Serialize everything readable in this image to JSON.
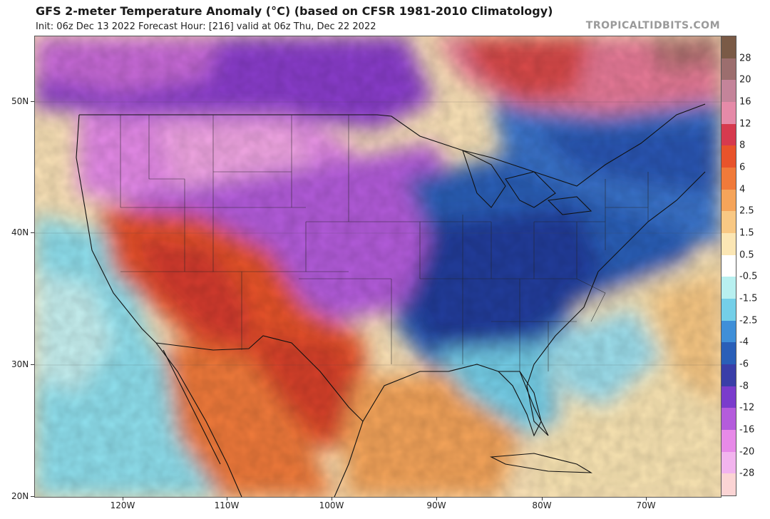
{
  "header": {
    "title": "GFS 2-meter Temperature Anomaly (°C) (based on CFSR 1981-2010 Climatology)",
    "subtitle": "Init: 06z Dec 13 2022   Forecast Hour: [216]   valid at 06z Thu, Dec 22 2022",
    "credit": "TROPICALTIDBITS.COM"
  },
  "map": {
    "lat_labels": [
      "50N",
      "40N",
      "30N",
      "20N"
    ],
    "lon_labels": [
      "120W",
      "110W",
      "100W",
      "90W",
      "80W",
      "70W"
    ]
  },
  "colorbar": {
    "labels": [
      "28",
      "20",
      "16",
      "12",
      "8",
      "6",
      "4",
      "2.5",
      "1.5",
      "0.5",
      "-0.5",
      "-1.5",
      "-2.5",
      "-4",
      "-6",
      "-8",
      "-12",
      "-16",
      "-20",
      "-28"
    ],
    "colors": [
      "#7a5a46",
      "#9c6e6e",
      "#c4849a",
      "#e58aa8",
      "#d63a4e",
      "#e8532b",
      "#f07a3a",
      "#f5a45a",
      "#f8c884",
      "#fbe6b4",
      "#ffffff",
      "#b8f0f0",
      "#74cfe8",
      "#3f8fd8",
      "#2a5fb8",
      "#3a3ea8",
      "#7a3ccc",
      "#b45cdc",
      "#e78ae8",
      "#f2b4ee",
      "#fbd4d4"
    ]
  }
}
